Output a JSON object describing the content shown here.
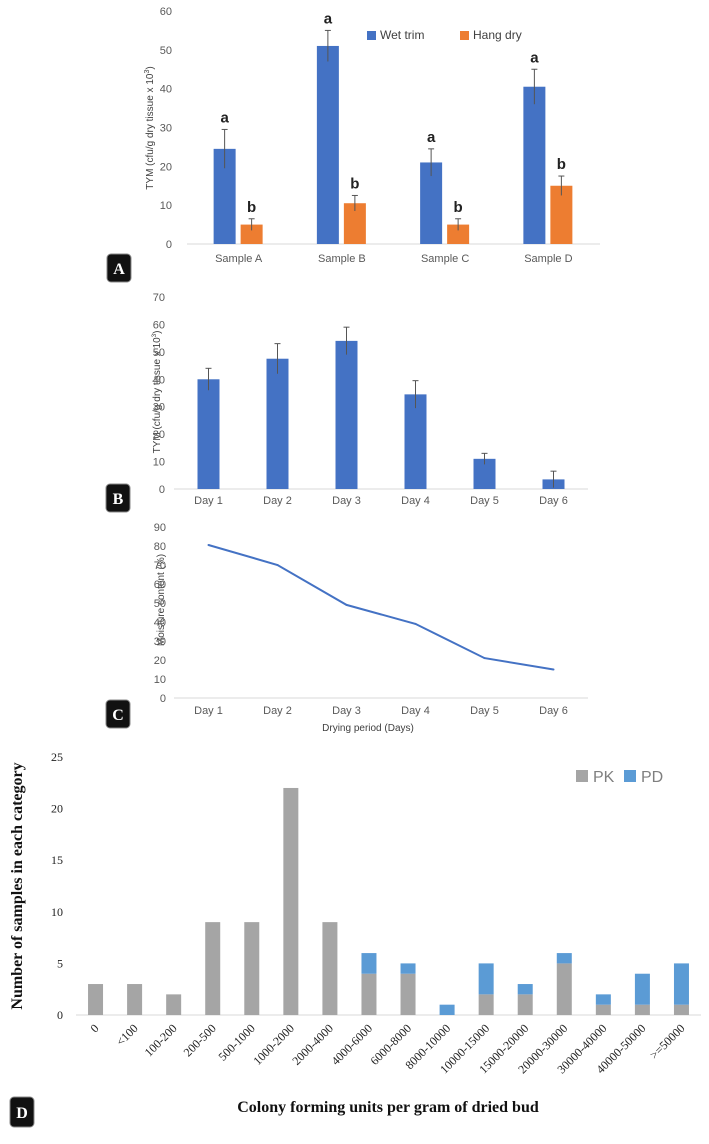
{
  "colors": {
    "blue": "#4472c4",
    "orange": "#ed7d31",
    "gray": "#a5a5a5",
    "lightblue": "#5b9bd5"
  },
  "chart_data": [
    {
      "panel": "A",
      "type": "bar",
      "ylabel": "TYM (cfu/g dry tissue x 10",
      "ylabel_sup": "3",
      "ylabel_end": ")",
      "ylim": [
        0,
        60
      ],
      "yticks": [
        0,
        10,
        20,
        30,
        40,
        50,
        60
      ],
      "categories": [
        "Sample A",
        "Sample B",
        "Sample C",
        "Sample D"
      ],
      "series": [
        {
          "name": "Wet trim",
          "values": [
            24.5,
            51,
            21,
            40.5
          ],
          "errors": [
            5,
            4,
            3.5,
            4.5
          ],
          "letters": [
            "a",
            "a",
            "a",
            "a"
          ]
        },
        {
          "name": "Hang dry",
          "values": [
            5,
            10.5,
            5,
            15
          ],
          "errors": [
            1.5,
            2,
            1.5,
            2.5
          ],
          "letters": [
            "b",
            "b",
            "b",
            "b"
          ]
        }
      ]
    },
    {
      "panel": "B",
      "type": "bar",
      "ylabel": "TYM (cfu/g dry tissue x 10",
      "ylabel_sup": "3",
      "ylabel_end": ")",
      "ylim": [
        0,
        70
      ],
      "yticks": [
        0,
        10,
        20,
        30,
        40,
        50,
        60,
        70
      ],
      "categories": [
        "Day 1",
        "Day 2",
        "Day 3",
        "Day 4",
        "Day 5",
        "Day 6"
      ],
      "values": [
        40,
        47.5,
        54,
        34.5,
        11,
        3.5
      ],
      "errors": [
        4,
        5.5,
        5,
        5,
        2,
        3
      ]
    },
    {
      "panel": "C",
      "type": "line",
      "ylabel": "Moisture content (%)",
      "xlabel": "Drying period (Days)",
      "ylim": [
        0,
        90
      ],
      "yticks": [
        0,
        10,
        20,
        30,
        40,
        50,
        60,
        70,
        80,
        90
      ],
      "categories": [
        "Day 1",
        "Day 2",
        "Day 3",
        "Day 4",
        "Day 5",
        "Day 6"
      ],
      "values": [
        80.5,
        70,
        49,
        39,
        21,
        15
      ]
    },
    {
      "panel": "D",
      "type": "bar",
      "stacked": true,
      "ylabel": "Number of samples in each category",
      "xlabel": "Colony forming units per gram of dried bud",
      "ylim": [
        0,
        25
      ],
      "yticks": [
        0,
        5,
        10,
        15,
        20,
        25
      ],
      "categories": [
        "0",
        "<100",
        "100-200",
        "200-500",
        "500-1000",
        "1000-2000",
        "2000-4000",
        "4000-6000",
        "6000-8000",
        "8000-10000",
        "10000-15000",
        "15000-20000",
        "20000-30000",
        "30000-40000",
        "40000-50000",
        ">=50000"
      ],
      "series": [
        {
          "name": "PK",
          "values": [
            3,
            3,
            2,
            9,
            9,
            22,
            9,
            4,
            4,
            0,
            2,
            2,
            5,
            1,
            1,
            1
          ]
        },
        {
          "name": "PD",
          "values": [
            0,
            0,
            0,
            0,
            0,
            0,
            0,
            2,
            1,
            1,
            3,
            1,
            1,
            1,
            3,
            4
          ]
        }
      ]
    }
  ],
  "panel_labels": [
    "A",
    "B",
    "C",
    "D"
  ]
}
